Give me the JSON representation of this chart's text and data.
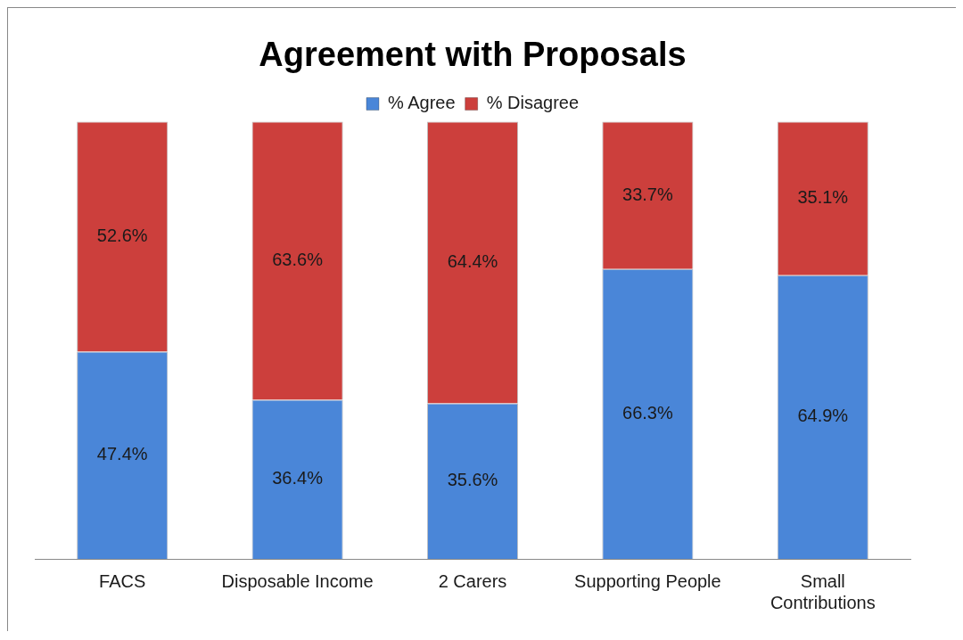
{
  "chart_data": {
    "type": "bar",
    "title": "Agreement with Proposals",
    "stacked": true,
    "legend": "top",
    "grid": false,
    "categories": [
      "FACS",
      "Disposable Income",
      "2 Carers",
      "Supporting People",
      "Small Contributions"
    ],
    "series": [
      {
        "name": "% Agree",
        "color": "#4a86d8",
        "values": [
          47.4,
          36.4,
          35.6,
          66.3,
          64.9
        ],
        "value_labels": [
          "47.4%",
          "36.4%",
          "35.6%",
          "66.3%",
          "64.9%"
        ]
      },
      {
        "name": "% Disagree",
        "color": "#cc3f3c",
        "values": [
          52.6,
          63.6,
          64.4,
          33.7,
          35.1
        ],
        "value_labels": [
          "52.6%",
          "63.6%",
          "64.4%",
          "33.7%",
          "35.1%"
        ]
      }
    ]
  }
}
